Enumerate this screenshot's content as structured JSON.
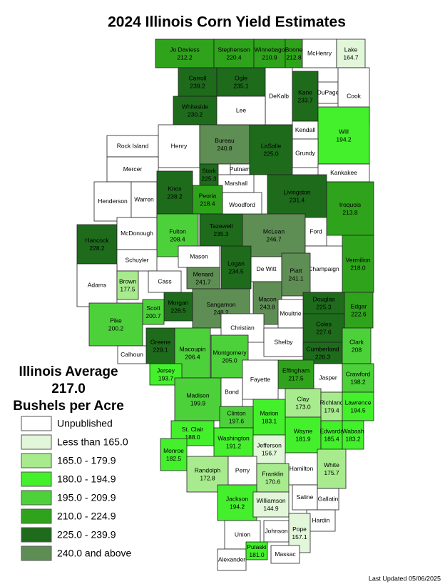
{
  "title": "2024 Illinois Corn Yield Estimates",
  "average": {
    "heading": "Illinois Average",
    "value": "217.0",
    "unit": "Bushels per Acre"
  },
  "legend": [
    {
      "label": "Unpublished",
      "color": "#ffffff"
    },
    {
      "label": "Less than 165.0",
      "color": "#e2f7d9"
    },
    {
      "label": "165.0 - 179.9",
      "color": "#a8eb8e"
    },
    {
      "label": "180.0 - 194.9",
      "color": "#44f02c"
    },
    {
      "label": "195.0 - 209.9",
      "color": "#4dd13a"
    },
    {
      "label": "210.0 - 224.9",
      "color": "#2fa31b"
    },
    {
      "label": "225.0 - 239.9",
      "color": "#1d6b1b"
    },
    {
      "label": "240.0 and above",
      "color": "#5f8e55"
    }
  ],
  "counties": [
    {
      "name": "Jo Daviess",
      "value": "212.2",
      "color": "#2fa31b"
    },
    {
      "name": "Stephenson",
      "value": "220.4",
      "color": "#2fa31b"
    },
    {
      "name": "Winnebago",
      "value": "210.9",
      "color": "#2fa31b"
    },
    {
      "name": "Boone",
      "value": "212.8",
      "color": "#2fa31b"
    },
    {
      "name": "McHenry",
      "color": "#ffffff"
    },
    {
      "name": "Lake",
      "value": "164.7",
      "color": "#e2f7d9"
    },
    {
      "name": "Carroll",
      "value": "239.2",
      "color": "#1d6b1b"
    },
    {
      "name": "Ogle",
      "value": "235.1",
      "color": "#1d6b1b"
    },
    {
      "name": "DeKalb",
      "color": "#ffffff"
    },
    {
      "name": "Kane",
      "value": "233.7",
      "color": "#1d6b1b"
    },
    {
      "name": "DuPage",
      "color": "#ffffff"
    },
    {
      "name": "Cook",
      "color": "#ffffff"
    },
    {
      "name": "Whiteside",
      "value": "230.2",
      "color": "#1d6b1b"
    },
    {
      "name": "Lee",
      "color": "#ffffff"
    },
    {
      "name": "Kendall",
      "color": "#ffffff"
    },
    {
      "name": "Will",
      "value": "194.2",
      "color": "#44f02c"
    },
    {
      "name": "Grundy",
      "color": "#ffffff"
    },
    {
      "name": "Rock Island",
      "color": "#ffffff"
    },
    {
      "name": "Henry",
      "color": "#ffffff"
    },
    {
      "name": "Bureau",
      "value": "240.8",
      "color": "#5f8e55"
    },
    {
      "name": "LaSalle",
      "value": "225.0",
      "color": "#1d6b1b"
    },
    {
      "name": "Mercer",
      "color": "#ffffff"
    },
    {
      "name": "Putnam",
      "color": "#ffffff"
    },
    {
      "name": "Stark",
      "value": "225.3",
      "color": "#1d6b1b"
    },
    {
      "name": "Marshall",
      "color": "#ffffff"
    },
    {
      "name": "Kankakee",
      "color": "#ffffff"
    },
    {
      "name": "Henderson",
      "color": "#ffffff"
    },
    {
      "name": "Warren",
      "color": "#ffffff"
    },
    {
      "name": "Knox",
      "value": "238.2",
      "color": "#1d6b1b"
    },
    {
      "name": "Peoria",
      "value": "218.4",
      "color": "#2fa31b"
    },
    {
      "name": "Woodford",
      "color": "#ffffff"
    },
    {
      "name": "Livingston",
      "value": "231.4",
      "color": "#1d6b1b"
    },
    {
      "name": "Iroquois",
      "value": "213.8",
      "color": "#2fa31b"
    },
    {
      "name": "Hancock",
      "value": "228.2",
      "color": "#1d6b1b"
    },
    {
      "name": "McDonough",
      "color": "#ffffff"
    },
    {
      "name": "Fulton",
      "value": "208.4",
      "color": "#4dd13a"
    },
    {
      "name": "Tazewell",
      "value": "235.3",
      "color": "#1d6b1b"
    },
    {
      "name": "McLean",
      "value": "246.7",
      "color": "#5f8e55"
    },
    {
      "name": "Ford",
      "color": "#ffffff"
    },
    {
      "name": "Vermilion",
      "value": "218.0",
      "color": "#2fa31b"
    },
    {
      "name": "Champaign",
      "color": "#ffffff"
    },
    {
      "name": "Schuyler",
      "color": "#ffffff"
    },
    {
      "name": "Mason",
      "color": "#ffffff"
    },
    {
      "name": "De Witt",
      "color": "#ffffff"
    },
    {
      "name": "Adams",
      "color": "#ffffff"
    },
    {
      "name": "Brown",
      "value": "177.5",
      "color": "#a8eb8e"
    },
    {
      "name": "Cass",
      "color": "#ffffff"
    },
    {
      "name": "Menard",
      "value": "241.7",
      "color": "#5f8e55"
    },
    {
      "name": "Logan",
      "value": "234.5",
      "color": "#1d6b1b"
    },
    {
      "name": "Piatt",
      "value": "241.1",
      "color": "#5f8e55"
    },
    {
      "name": "Macon",
      "value": "243.8",
      "color": "#5f8e55"
    },
    {
      "name": "Morgan",
      "value": "228.5",
      "color": "#1d6b1b"
    },
    {
      "name": "Scott",
      "value": "200.7",
      "color": "#4dd13a"
    },
    {
      "name": "Pike",
      "value": "200.2",
      "color": "#4dd13a"
    },
    {
      "name": "Sangamon",
      "value": "248.2",
      "color": "#5f8e55"
    },
    {
      "name": "Douglas",
      "value": "225.3",
      "color": "#1d6b1b"
    },
    {
      "name": "Edgar",
      "value": "222.6",
      "color": "#2fa31b"
    },
    {
      "name": "Moultrie",
      "color": "#ffffff"
    },
    {
      "name": "Christian",
      "color": "#ffffff"
    },
    {
      "name": "Coles",
      "value": "227.6",
      "color": "#1d6b1b"
    },
    {
      "name": "Shelby",
      "color": "#ffffff"
    },
    {
      "name": "Greene",
      "value": "229.1",
      "color": "#1d6b1b"
    },
    {
      "name": "Calhoun",
      "color": "#ffffff"
    },
    {
      "name": "Macoupin",
      "value": "206.4",
      "color": "#4dd13a"
    },
    {
      "name": "Montgomery",
      "value": "205.0",
      "color": "#4dd13a"
    },
    {
      "name": "Cumberland",
      "value": "226.3",
      "color": "#1d6b1b"
    },
    {
      "name": "Clark",
      "value": "208",
      "color": "#4dd13a"
    },
    {
      "name": "Jersey",
      "value": "193.7",
      "color": "#44f02c"
    },
    {
      "name": "Effingham",
      "value": "217.5",
      "color": "#2fa31b"
    },
    {
      "name": "Fayette",
      "color": "#ffffff"
    },
    {
      "name": "Jasper",
      "color": "#ffffff"
    },
    {
      "name": "Crawford",
      "value": "198.2",
      "color": "#4dd13a"
    },
    {
      "name": "Madison",
      "value": "199.9",
      "color": "#4dd13a"
    },
    {
      "name": "Bond",
      "color": "#ffffff"
    },
    {
      "name": "Clay",
      "value": "173.0",
      "color": "#a8eb8e"
    },
    {
      "name": "Richland",
      "value": "179.4",
      "color": "#a8eb8e"
    },
    {
      "name": "Lawrence",
      "value": "194.5",
      "color": "#44f02c"
    },
    {
      "name": "Marion",
      "value": "183.1",
      "color": "#44f02c"
    },
    {
      "name": "Clinton",
      "value": "197.6",
      "color": "#4dd13a"
    },
    {
      "name": "St. Clair",
      "value": "188.0",
      "color": "#44f02c"
    },
    {
      "name": "Wayne",
      "value": "181.9",
      "color": "#44f02c"
    },
    {
      "name": "Edwards",
      "value": "185.4",
      "color": "#44f02c"
    },
    {
      "name": "Wabash",
      "value": "183.2",
      "color": "#44f02c"
    },
    {
      "name": "Washington",
      "value": "191.2",
      "color": "#44f02c"
    },
    {
      "name": "Jefferson",
      "value": "156.7",
      "color": "#e2f7d9"
    },
    {
      "name": "Monroe",
      "value": "182.5",
      "color": "#44f02c"
    },
    {
      "name": "Randolph",
      "value": "172.8",
      "color": "#a8eb8e"
    },
    {
      "name": "Perry",
      "color": "#ffffff"
    },
    {
      "name": "Hamilton",
      "color": "#ffffff"
    },
    {
      "name": "White",
      "value": "175.7",
      "color": "#a8eb8e"
    },
    {
      "name": "Franklin",
      "value": "170.6",
      "color": "#a8eb8e"
    },
    {
      "name": "Jackson",
      "value": "194.2",
      "color": "#44f02c"
    },
    {
      "name": "Williamson",
      "value": "144.9",
      "color": "#e2f7d9"
    },
    {
      "name": "Saline",
      "color": "#ffffff"
    },
    {
      "name": "Gallatin",
      "color": "#ffffff"
    },
    {
      "name": "Hardin",
      "color": "#ffffff"
    },
    {
      "name": "Union",
      "color": "#ffffff"
    },
    {
      "name": "Johnson",
      "color": "#ffffff"
    },
    {
      "name": "Pope",
      "value": "157.1",
      "color": "#e2f7d9"
    },
    {
      "name": "Alexander",
      "color": "#ffffff"
    },
    {
      "name": "Pulaski",
      "value": "181.0",
      "color": "#44f02c"
    },
    {
      "name": "Massac",
      "color": "#ffffff"
    }
  ],
  "footer": "Last Updated 05/06/2025"
}
